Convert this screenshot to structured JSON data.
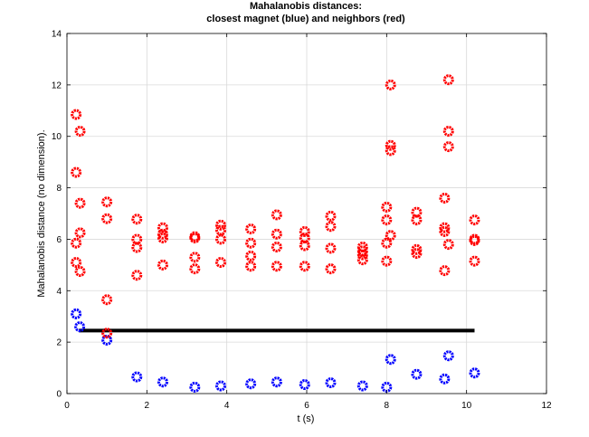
{
  "chart_data": {
    "type": "scatter",
    "title": [
      "Mahalanobis distances:",
      "closest magnet (blue) and neighbors (red)"
    ],
    "xlabel": "t (s)",
    "ylabel": "Mahalanobis distance (no dimension).",
    "xlim": [
      0,
      12
    ],
    "ylim": [
      0,
      14
    ],
    "xticks": [
      0,
      2,
      4,
      6,
      8,
      10,
      12
    ],
    "yticks": [
      0,
      2,
      4,
      6,
      8,
      10,
      12,
      14
    ],
    "grid": true,
    "marker": "circle-open",
    "colors": {
      "blue": "#0000ff",
      "red": "#ff0000",
      "line": "#000000"
    },
    "series": [
      {
        "color": "#0000ff",
        "points": [
          [
            0.23,
            3.1
          ],
          [
            0.32,
            2.6
          ],
          [
            1.0,
            2.08
          ],
          [
            1.75,
            0.65
          ],
          [
            2.4,
            0.45
          ],
          [
            3.2,
            0.25
          ],
          [
            3.85,
            0.3
          ],
          [
            4.6,
            0.38
          ],
          [
            5.25,
            0.45
          ],
          [
            5.95,
            0.35
          ],
          [
            6.6,
            0.42
          ],
          [
            7.4,
            0.3
          ],
          [
            8.0,
            0.25
          ],
          [
            8.1,
            1.33
          ],
          [
            8.75,
            0.75
          ],
          [
            9.45,
            0.57
          ],
          [
            9.55,
            1.47
          ],
          [
            10.2,
            0.8
          ]
        ]
      },
      {
        "color": "#ff0000",
        "points": [
          [
            0.23,
            10.85
          ],
          [
            0.33,
            10.2
          ],
          [
            0.23,
            8.6
          ],
          [
            0.33,
            7.4
          ],
          [
            0.33,
            6.25
          ],
          [
            0.23,
            5.85
          ],
          [
            0.23,
            5.1
          ],
          [
            0.33,
            4.75
          ],
          [
            1.0,
            7.45
          ],
          [
            1.0,
            6.8
          ],
          [
            1.0,
            3.65
          ],
          [
            1.0,
            2.35
          ],
          [
            1.75,
            6.78
          ],
          [
            1.75,
            6.0
          ],
          [
            1.75,
            5.68
          ],
          [
            1.75,
            4.6
          ],
          [
            2.4,
            6.45
          ],
          [
            2.4,
            6.2
          ],
          [
            2.4,
            6.05
          ],
          [
            2.4,
            5.0
          ],
          [
            3.2,
            6.05
          ],
          [
            3.2,
            6.1
          ],
          [
            3.2,
            5.3
          ],
          [
            3.2,
            4.85
          ],
          [
            3.85,
            6.55
          ],
          [
            3.85,
            6.35
          ],
          [
            3.85,
            6.0
          ],
          [
            3.85,
            5.1
          ],
          [
            4.6,
            6.4
          ],
          [
            4.6,
            5.85
          ],
          [
            4.6,
            5.35
          ],
          [
            4.6,
            4.95
          ],
          [
            5.25,
            6.95
          ],
          [
            5.25,
            6.2
          ],
          [
            5.25,
            5.7
          ],
          [
            5.25,
            4.95
          ],
          [
            5.95,
            6.3
          ],
          [
            5.95,
            6.05
          ],
          [
            5.95,
            5.75
          ],
          [
            5.95,
            4.95
          ],
          [
            6.6,
            6.9
          ],
          [
            6.6,
            6.5
          ],
          [
            6.6,
            5.65
          ],
          [
            6.6,
            4.85
          ],
          [
            7.4,
            5.7
          ],
          [
            7.4,
            5.55
          ],
          [
            7.4,
            5.4
          ],
          [
            7.4,
            5.2
          ],
          [
            8.0,
            7.25
          ],
          [
            8.0,
            6.75
          ],
          [
            8.0,
            5.85
          ],
          [
            8.0,
            5.15
          ],
          [
            8.1,
            12.0
          ],
          [
            8.1,
            9.65
          ],
          [
            8.1,
            9.45
          ],
          [
            8.1,
            6.15
          ],
          [
            8.75,
            7.05
          ],
          [
            8.75,
            6.75
          ],
          [
            8.75,
            5.6
          ],
          [
            8.75,
            5.45
          ],
          [
            9.45,
            7.6
          ],
          [
            9.45,
            6.45
          ],
          [
            9.45,
            6.3
          ],
          [
            9.45,
            4.78
          ],
          [
            9.55,
            12.2
          ],
          [
            9.55,
            10.2
          ],
          [
            9.55,
            9.6
          ],
          [
            9.55,
            5.8
          ],
          [
            10.2,
            6.75
          ],
          [
            10.2,
            6.0
          ],
          [
            10.2,
            5.95
          ],
          [
            10.2,
            5.15
          ]
        ]
      }
    ],
    "threshold_line": {
      "x": [
        0.3,
        10.2
      ],
      "y": 2.45,
      "color": "#000000"
    }
  }
}
